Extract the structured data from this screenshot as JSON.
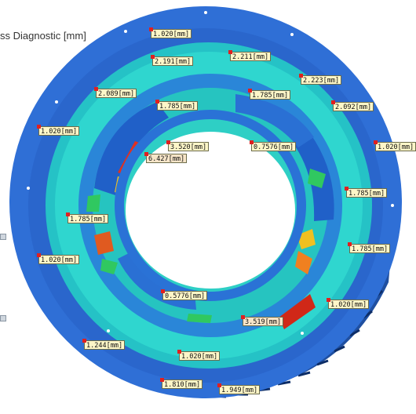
{
  "title": "ss Diagnostic [mm]",
  "colors": {
    "rim": "#2f6fd6",
    "rim_dark": "#1d4fa8",
    "inner_field": "#2ad0c8",
    "stress_high": "#e03020",
    "stress_mid": "#f0c020",
    "stress_low": "#30c860",
    "tag_fill": "#fdf6c8"
  },
  "labels": [
    {
      "id": "l1",
      "text": "1.020[mm]"
    },
    {
      "id": "l2",
      "text": "2.191[mm]"
    },
    {
      "id": "l3",
      "text": "2.211[mm]"
    },
    {
      "id": "l4",
      "text": "2.223[mm]"
    },
    {
      "id": "l5",
      "text": "2.089[mm]"
    },
    {
      "id": "l6",
      "text": "1.785[mm]"
    },
    {
      "id": "l7",
      "text": "1.785[mm]"
    },
    {
      "id": "l8",
      "text": "2.092[mm]"
    },
    {
      "id": "l9",
      "text": "1.020[mm]"
    },
    {
      "id": "l10",
      "text": "3.520[mm]"
    },
    {
      "id": "l11",
      "text": "0.7576[mm]"
    },
    {
      "id": "l12",
      "text": "1.020[mm]"
    },
    {
      "id": "l13",
      "text": "6.427[mm]"
    },
    {
      "id": "l14",
      "text": "1.785[mm]"
    },
    {
      "id": "l15",
      "text": "1.785[mm]"
    },
    {
      "id": "l16",
      "text": "1.785[mm]"
    },
    {
      "id": "l17",
      "text": "1.020[mm]"
    },
    {
      "id": "l18",
      "text": "0.5776[mm]"
    },
    {
      "id": "l19",
      "text": "1.020[mm]"
    },
    {
      "id": "l20",
      "text": "3.519[mm]"
    },
    {
      "id": "l21",
      "text": "1.244[mm]"
    },
    {
      "id": "l22",
      "text": "1.020[mm]"
    },
    {
      "id": "l23",
      "text": "1.810[mm]"
    },
    {
      "id": "l24",
      "text": "1.949[mm]"
    }
  ]
}
